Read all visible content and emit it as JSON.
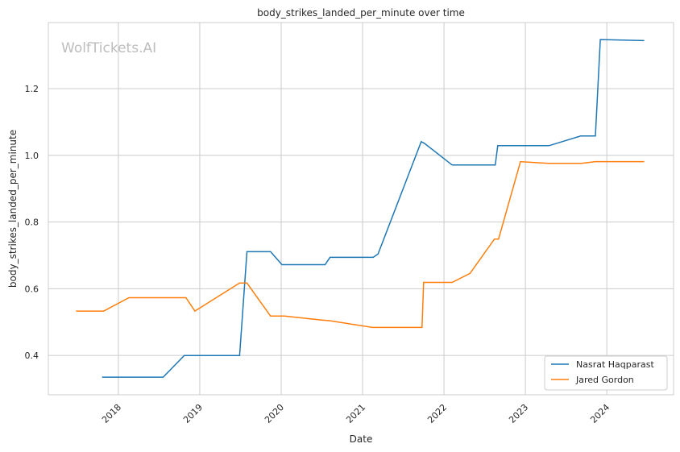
{
  "chart_data": {
    "type": "line",
    "title": "body_strikes_landed_per_minute over time",
    "xlabel": "Date",
    "ylabel": "body_strikes_landed_per_minute",
    "watermark": "WolfTickets.AI",
    "xlim": [
      2017.14,
      2024.82
    ],
    "ylim": [
      0.282,
      1.398
    ],
    "xticks": [
      2018,
      2019,
      2020,
      2021,
      2022,
      2023,
      2024
    ],
    "xtick_labels": [
      "2018",
      "2019",
      "2020",
      "2021",
      "2022",
      "2023",
      "2024"
    ],
    "yticks": [
      0.4,
      0.6,
      0.8,
      1.0,
      1.2
    ],
    "ytick_labels": [
      "0.4",
      "0.6",
      "0.8",
      "1.0",
      "1.2"
    ],
    "grid": true,
    "legend_position": "bottom-right",
    "series": [
      {
        "name": "Nasrat Haqparast",
        "color": "#1f77b4",
        "x": [
          2017.8,
          2018.55,
          2018.81,
          2019.49,
          2019.58,
          2019.87,
          2020.01,
          2020.54,
          2020.6,
          2021.13,
          2021.19,
          2021.72,
          2021.76,
          2022.1,
          2022.63,
          2022.66,
          2023.29,
          2023.68,
          2023.86,
          2023.92,
          2024.46
        ],
        "y": [
          0.335,
          0.335,
          0.4,
          0.4,
          0.711,
          0.711,
          0.672,
          0.672,
          0.694,
          0.694,
          0.704,
          1.041,
          1.036,
          0.971,
          0.971,
          1.029,
          1.029,
          1.058,
          1.058,
          1.347,
          1.344
        ]
      },
      {
        "name": "Jared Gordon",
        "color": "#ff7f0e",
        "x": [
          2017.48,
          2017.82,
          2018.13,
          2018.83,
          2018.94,
          2019.49,
          2019.58,
          2019.87,
          2020.04,
          2020.5,
          2020.6,
          2021.12,
          2021.73,
          2021.75,
          2022.1,
          2022.32,
          2022.62,
          2022.67,
          2022.94,
          2023.28,
          2023.69,
          2023.86,
          2024.46
        ],
        "y": [
          0.533,
          0.533,
          0.573,
          0.573,
          0.533,
          0.617,
          0.617,
          0.518,
          0.518,
          0.506,
          0.504,
          0.484,
          0.484,
          0.619,
          0.619,
          0.646,
          0.749,
          0.749,
          0.981,
          0.976,
          0.976,
          0.981,
          0.981
        ]
      }
    ]
  }
}
